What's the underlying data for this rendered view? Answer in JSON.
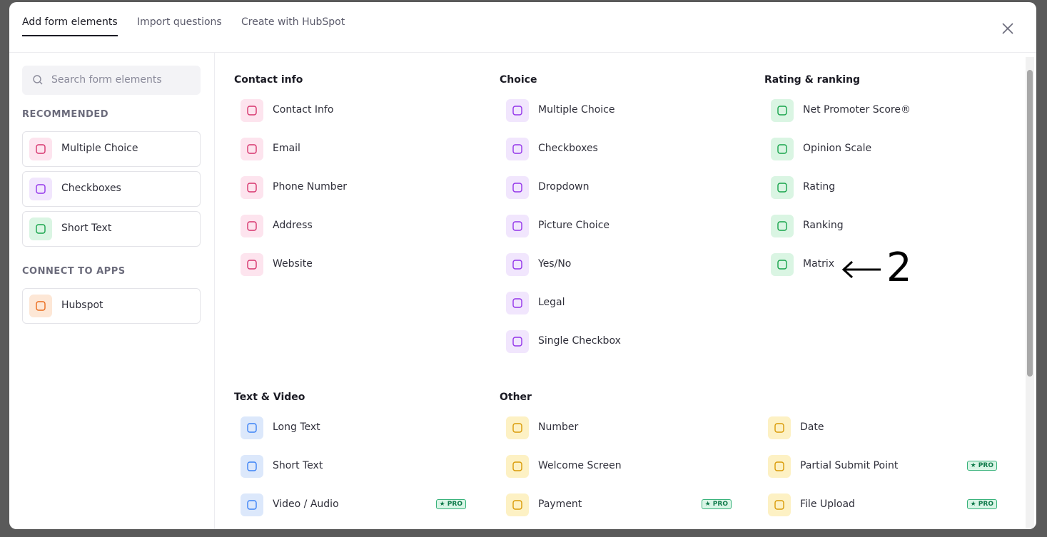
{
  "tabs": [
    "Add form elements",
    "Import questions",
    "Create with HubSpot"
  ],
  "search_placeholder": "Search form elements",
  "sidebar": [
    {
      "heading": "RECOMMENDED",
      "items": [
        "Multiple Choice",
        "Checkboxes",
        "Short Text"
      ]
    },
    {
      "heading": "CONNECT TO APPS",
      "items": [
        "Hubspot"
      ]
    }
  ],
  "sections": [
    {
      "heading": "Contact info",
      "columns": [
        [
          {
            "label": "Contact Info"
          },
          {
            "label": "Email"
          },
          {
            "label": "Phone Number"
          },
          {
            "label": "Address"
          },
          {
            "label": "Website"
          }
        ]
      ]
    },
    {
      "heading": "Choice",
      "columns": [
        [
          {
            "label": "Multiple Choice"
          },
          {
            "label": "Checkboxes"
          },
          {
            "label": "Dropdown"
          },
          {
            "label": "Picture Choice"
          },
          {
            "label": "Yes/No"
          },
          {
            "label": "Legal"
          },
          {
            "label": "Single Checkbox"
          }
        ]
      ]
    },
    {
      "heading": "Rating & ranking",
      "columns": [
        [
          {
            "label": "Net Promoter Score®"
          },
          {
            "label": "Opinion Scale"
          },
          {
            "label": "Rating"
          },
          {
            "label": "Ranking"
          },
          {
            "label": "Matrix"
          }
        ]
      ]
    },
    {
      "heading": "Text & Video",
      "columns": [
        [
          {
            "label": "Long Text"
          },
          {
            "label": "Short Text"
          },
          {
            "label": "Video / Audio",
            "badge": "★ PRO"
          }
        ]
      ]
    },
    {
      "heading": "Other",
      "columns": [
        [
          {
            "label": "Number"
          },
          {
            "label": "Welcome Screen"
          },
          {
            "label": "Payment",
            "badge": "★ PRO"
          }
        ],
        [
          {
            "label": "Date"
          },
          {
            "label": "Partial Submit Point",
            "badge": "★ PRO"
          },
          {
            "label": "File Upload",
            "badge": "★ PRO"
          }
        ]
      ]
    }
  ],
  "annotation": "2"
}
